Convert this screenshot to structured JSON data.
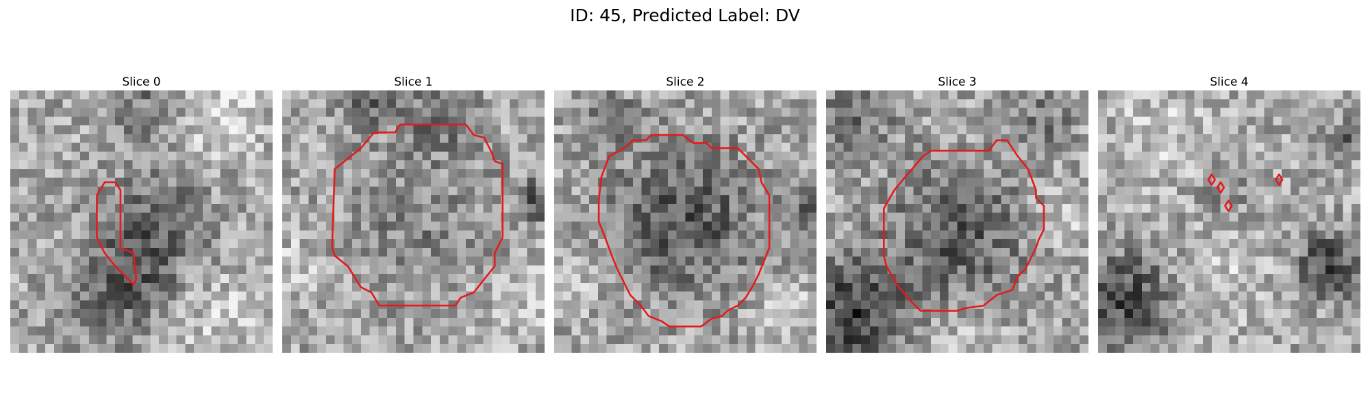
{
  "figure": {
    "title": "ID: 45, Predicted Label: DV",
    "contour_color": "#e41a1c"
  },
  "slices": [
    {
      "title": "Slice 0",
      "dark_blobs": [
        [
          0.55,
          0.55,
          0.22,
          0.5
        ],
        [
          0.42,
          0.78,
          0.18,
          0.4
        ],
        [
          0.5,
          0.05,
          0.15,
          0.3
        ]
      ],
      "light_blobs": [
        [
          0.8,
          0.08,
          0.18,
          0.5
        ],
        [
          0.75,
          0.85,
          0.25,
          0.35
        ]
      ],
      "contours": [
        [
          [
            0.33,
            0.4
          ],
          [
            0.36,
            0.35
          ],
          [
            0.4,
            0.35
          ],
          [
            0.42,
            0.38
          ],
          [
            0.42,
            0.6
          ],
          [
            0.47,
            0.62
          ],
          [
            0.48,
            0.72
          ],
          [
            0.47,
            0.74
          ],
          [
            0.4,
            0.67
          ],
          [
            0.36,
            0.62
          ],
          [
            0.33,
            0.56
          ]
        ]
      ]
    },
    {
      "title": "Slice 1",
      "dark_blobs": [
        [
          0.32,
          0.05,
          0.1,
          0.5
        ],
        [
          0.6,
          0.1,
          0.12,
          0.4
        ],
        [
          0.5,
          0.5,
          0.28,
          0.25
        ],
        [
          0.97,
          0.42,
          0.08,
          0.55
        ]
      ],
      "light_blobs": [
        [
          0.06,
          0.65,
          0.1,
          0.35
        ],
        [
          0.9,
          0.8,
          0.15,
          0.3
        ]
      ],
      "contours": [
        [
          [
            0.2,
            0.3
          ],
          [
            0.3,
            0.22
          ],
          [
            0.35,
            0.16
          ],
          [
            0.43,
            0.16
          ],
          [
            0.45,
            0.13
          ],
          [
            0.7,
            0.13
          ],
          [
            0.73,
            0.17
          ],
          [
            0.77,
            0.18
          ],
          [
            0.8,
            0.24
          ],
          [
            0.81,
            0.27
          ],
          [
            0.84,
            0.28
          ],
          [
            0.84,
            0.35
          ],
          [
            0.84,
            0.56
          ],
          [
            0.81,
            0.62
          ],
          [
            0.81,
            0.67
          ],
          [
            0.73,
            0.77
          ],
          [
            0.68,
            0.79
          ],
          [
            0.66,
            0.82
          ],
          [
            0.37,
            0.82
          ],
          [
            0.34,
            0.77
          ],
          [
            0.3,
            0.75
          ],
          [
            0.25,
            0.67
          ],
          [
            0.2,
            0.63
          ],
          [
            0.19,
            0.6
          ]
        ]
      ]
    },
    {
      "title": "Slice 2",
      "dark_blobs": [
        [
          0.5,
          0.5,
          0.28,
          0.55
        ],
        [
          0.98,
          0.45,
          0.08,
          0.55
        ],
        [
          0.22,
          0.13,
          0.1,
          0.45
        ]
      ],
      "light_blobs": [
        [
          0.9,
          0.82,
          0.12,
          0.35
        ],
        [
          0.08,
          0.75,
          0.1,
          0.3
        ]
      ],
      "contours": [
        [
          [
            0.18,
            0.33
          ],
          [
            0.21,
            0.25
          ],
          [
            0.25,
            0.23
          ],
          [
            0.28,
            0.21
          ],
          [
            0.3,
            0.19
          ],
          [
            0.35,
            0.19
          ],
          [
            0.37,
            0.17
          ],
          [
            0.49,
            0.17
          ],
          [
            0.53,
            0.2
          ],
          [
            0.58,
            0.2
          ],
          [
            0.6,
            0.22
          ],
          [
            0.7,
            0.22
          ],
          [
            0.74,
            0.26
          ],
          [
            0.78,
            0.3
          ],
          [
            0.79,
            0.35
          ],
          [
            0.82,
            0.4
          ],
          [
            0.82,
            0.6
          ],
          [
            0.8,
            0.65
          ],
          [
            0.78,
            0.7
          ],
          [
            0.76,
            0.74
          ],
          [
            0.73,
            0.79
          ],
          [
            0.7,
            0.82
          ],
          [
            0.66,
            0.84
          ],
          [
            0.64,
            0.86
          ],
          [
            0.6,
            0.87
          ],
          [
            0.56,
            0.9
          ],
          [
            0.44,
            0.9
          ],
          [
            0.41,
            0.88
          ],
          [
            0.36,
            0.86
          ],
          [
            0.33,
            0.82
          ],
          [
            0.29,
            0.78
          ],
          [
            0.26,
            0.72
          ],
          [
            0.24,
            0.68
          ],
          [
            0.22,
            0.63
          ],
          [
            0.19,
            0.55
          ],
          [
            0.17,
            0.5
          ],
          [
            0.17,
            0.42
          ]
        ]
      ]
    },
    {
      "title": "Slice 3",
      "dark_blobs": [
        [
          0.5,
          0.55,
          0.26,
          0.5
        ],
        [
          0.1,
          0.85,
          0.2,
          0.7
        ],
        [
          0.1,
          0.1,
          0.15,
          0.4
        ],
        [
          0.83,
          0.1,
          0.12,
          0.3
        ]
      ],
      "light_blobs": [
        [
          0.9,
          0.5,
          0.12,
          0.3
        ],
        [
          0.55,
          0.97,
          0.15,
          0.3
        ]
      ],
      "contours": [
        [
          [
            0.26,
            0.38
          ],
          [
            0.31,
            0.32
          ],
          [
            0.37,
            0.25
          ],
          [
            0.4,
            0.23
          ],
          [
            0.62,
            0.23
          ],
          [
            0.65,
            0.19
          ],
          [
            0.69,
            0.19
          ],
          [
            0.73,
            0.25
          ],
          [
            0.77,
            0.3
          ],
          [
            0.8,
            0.38
          ],
          [
            0.8,
            0.41
          ],
          [
            0.83,
            0.44
          ],
          [
            0.83,
            0.53
          ],
          [
            0.81,
            0.57
          ],
          [
            0.8,
            0.6
          ],
          [
            0.76,
            0.68
          ],
          [
            0.73,
            0.71
          ],
          [
            0.71,
            0.76
          ],
          [
            0.65,
            0.78
          ],
          [
            0.6,
            0.82
          ],
          [
            0.53,
            0.83
          ],
          [
            0.5,
            0.84
          ],
          [
            0.36,
            0.84
          ],
          [
            0.32,
            0.8
          ],
          [
            0.27,
            0.74
          ],
          [
            0.23,
            0.67
          ],
          [
            0.22,
            0.63
          ],
          [
            0.22,
            0.45
          ]
        ]
      ]
    },
    {
      "title": "Slice 4",
      "dark_blobs": [
        [
          0.1,
          0.8,
          0.18,
          0.65
        ],
        [
          0.88,
          0.67,
          0.12,
          0.7
        ],
        [
          0.95,
          0.18,
          0.06,
          0.4
        ],
        [
          0.5,
          0.4,
          0.12,
          0.2
        ]
      ],
      "light_blobs": [
        [
          0.25,
          0.15,
          0.2,
          0.35
        ],
        [
          0.5,
          0.7,
          0.2,
          0.3
        ]
      ],
      "contours": [
        [
          [
            0.42,
            0.34
          ],
          [
            0.433,
            0.32
          ],
          [
            0.446,
            0.34
          ],
          [
            0.433,
            0.36
          ]
        ],
        [
          [
            0.454,
            0.37
          ],
          [
            0.467,
            0.35
          ],
          [
            0.48,
            0.37
          ],
          [
            0.467,
            0.39
          ]
        ],
        [
          [
            0.484,
            0.44
          ],
          [
            0.497,
            0.42
          ],
          [
            0.51,
            0.44
          ],
          [
            0.497,
            0.46
          ]
        ],
        [
          [
            0.677,
            0.34
          ],
          [
            0.69,
            0.32
          ],
          [
            0.703,
            0.34
          ],
          [
            0.69,
            0.36
          ]
        ]
      ]
    }
  ]
}
